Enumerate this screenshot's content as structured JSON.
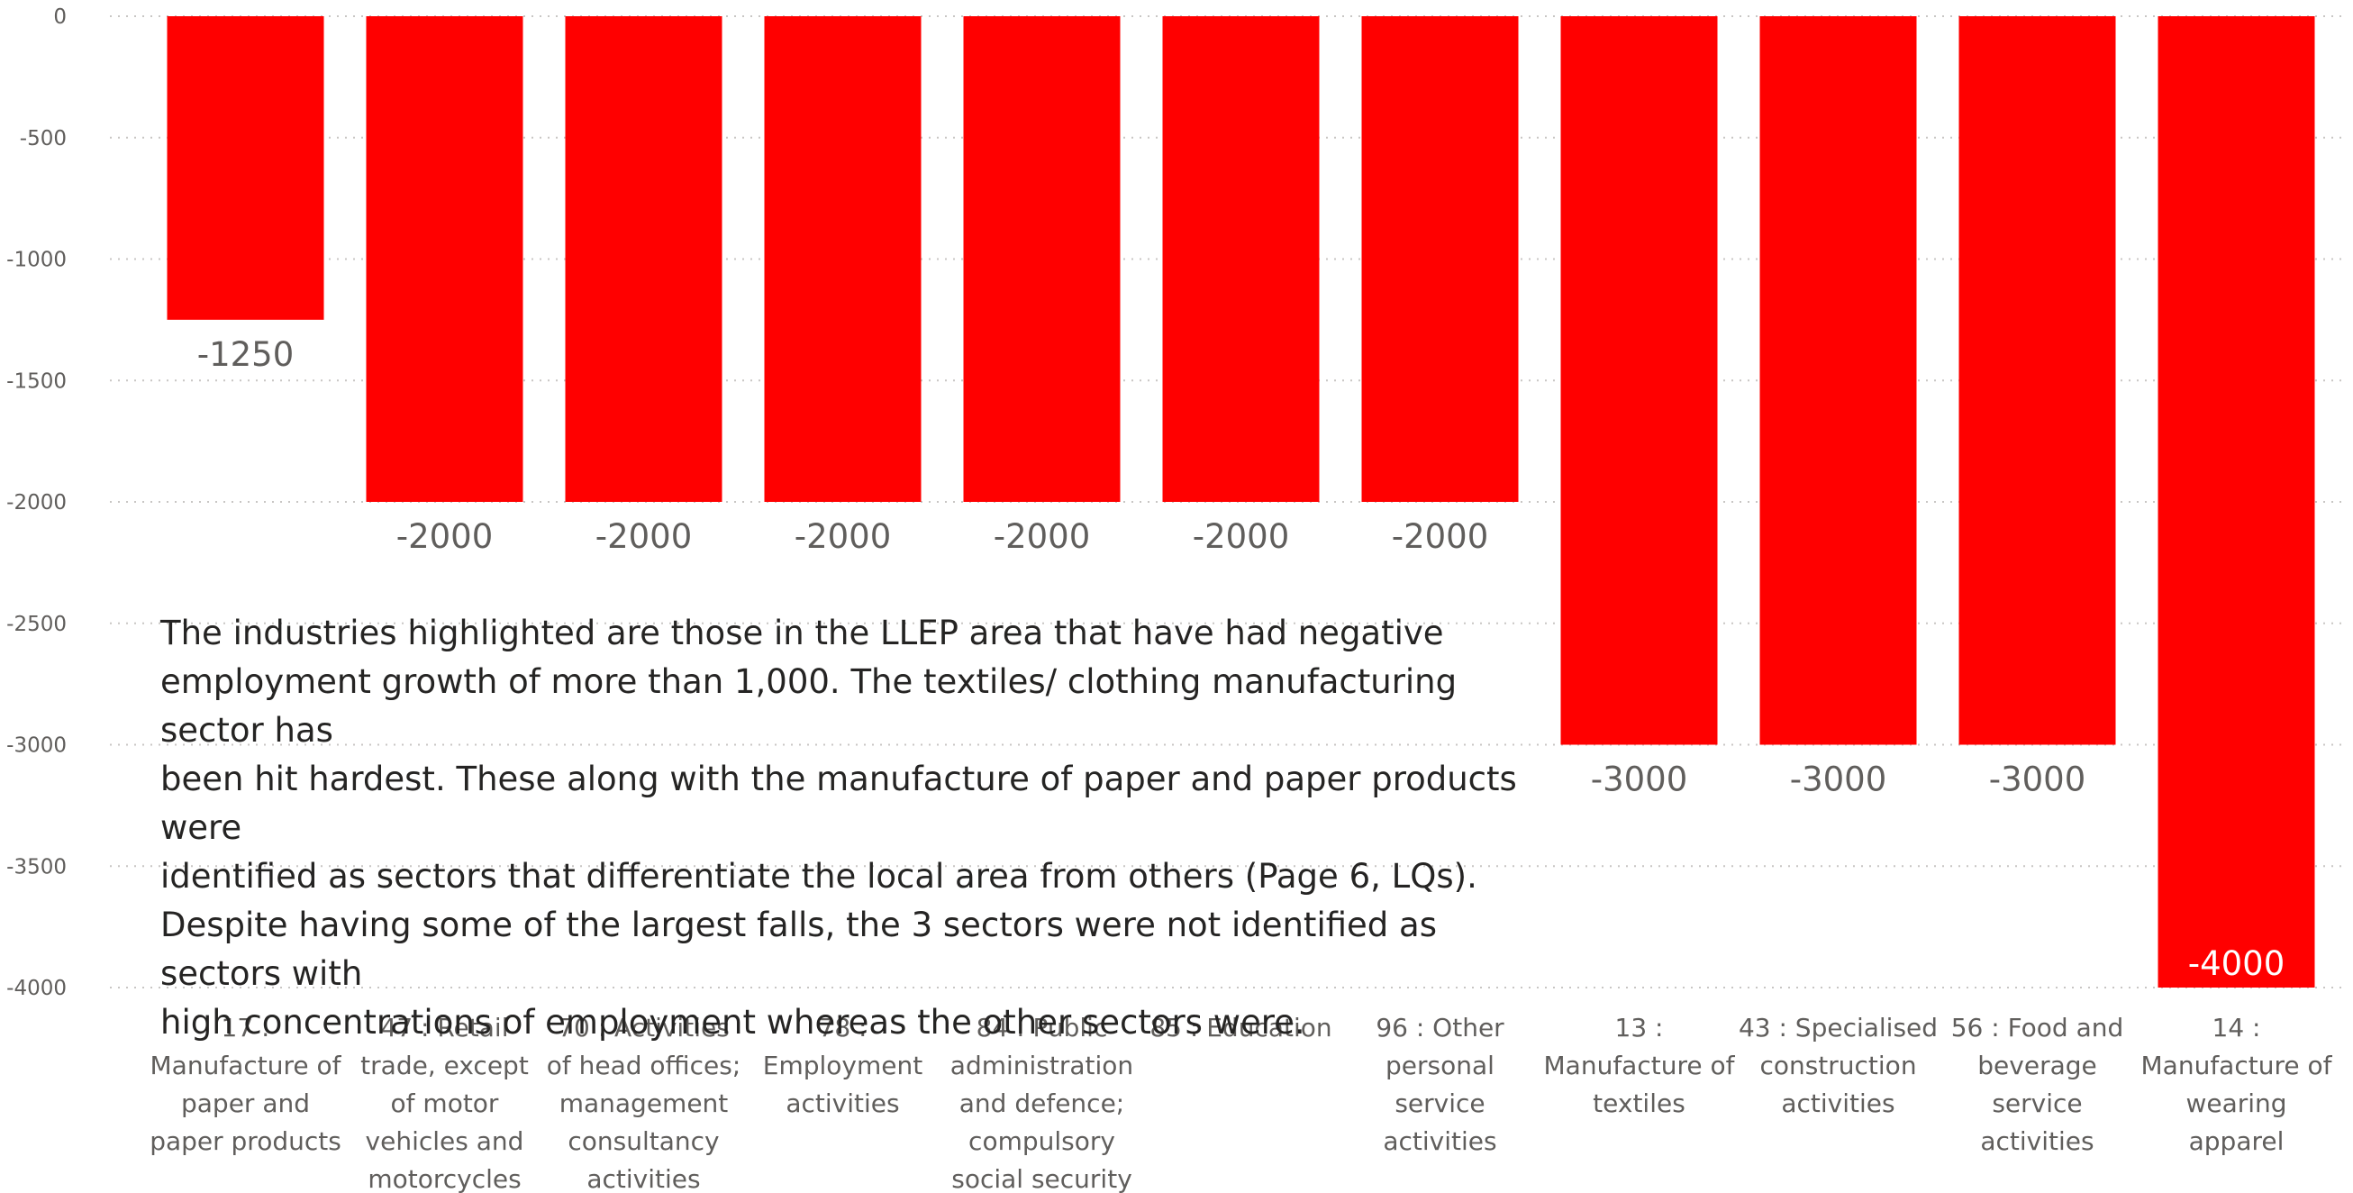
{
  "chart_data": {
    "type": "bar",
    "categories": [
      "17 : Manufacture of paper and paper products",
      "47 : Retail trade, except of motor vehicles and motorcycles",
      "70 : Activities of head offices; management consultancy activities",
      "78 : Employment activities",
      "84 : Public administration and defence; compulsory social security",
      "85 : Education",
      "96 : Other personal service activities",
      "13 : Manufacture of textiles",
      "43 : Specialised construction activities",
      "56 : Food and beverage service activities",
      "14 : Manufacture of wearing apparel"
    ],
    "category_lines": [
      [
        "17 :",
        "Manufacture of",
        "paper and",
        "paper products"
      ],
      [
        "47 : Retail",
        "trade, except",
        "of motor",
        "vehicles and",
        "motorcycles"
      ],
      [
        "70 : Activities",
        "of head offices;",
        "management",
        "consultancy",
        "activities"
      ],
      [
        "78 :",
        "Employment",
        "activities"
      ],
      [
        "84 : Public",
        "administration",
        "and defence;",
        "compulsory",
        "social security"
      ],
      [
        "85 : Education"
      ],
      [
        "96 : Other",
        "personal",
        "service",
        "activities"
      ],
      [
        "13 :",
        "Manufacture of",
        "textiles"
      ],
      [
        "43 : Specialised",
        "construction",
        "activities"
      ],
      [
        "56 : Food and",
        "beverage",
        "service",
        "activities"
      ],
      [
        "14 :",
        "Manufacture of",
        "wearing",
        "apparel"
      ]
    ],
    "values": [
      -1250,
      -2000,
      -2000,
      -2000,
      -2000,
      -2000,
      -2000,
      -3000,
      -3000,
      -3000,
      -4000
    ],
    "data_labels": [
      "-1250",
      "-2000",
      "-2000",
      "-2000",
      "-2000",
      "-2000",
      "-2000",
      "-3000",
      "-3000",
      "-3000",
      "-4000"
    ],
    "y_ticks": [
      0,
      -500,
      -1000,
      -1500,
      -2000,
      -2500,
      -3000,
      -3500,
      -4000
    ],
    "y_tick_labels": [
      "0",
      "-500",
      "-1000",
      "-1500",
      "-2000",
      "-2500",
      "-3000",
      "-3500",
      "-4000"
    ],
    "ylim": [
      -4000,
      0
    ],
    "grid": true,
    "bar_color": "#ff0000",
    "label_color": "#605e5c",
    "inside_label_color": "#ffffff",
    "title": "",
    "xlabel": "",
    "ylabel": ""
  },
  "annotation": {
    "lines": [
      "The industries highlighted are those in the LLEP area that have had negative",
      "employment growth of more than 1,000.  The textiles/ clothing manufacturing sector has",
      "been hit hardest.  These along with the manufacture of paper and paper products were",
      "identified as sectors that differentiate the local area from others (Page 6, LQs).",
      "Despite having some of the largest falls, the 3 sectors were not identified as sectors with",
      "high concentrations of employment whereas the other sectors were."
    ]
  }
}
